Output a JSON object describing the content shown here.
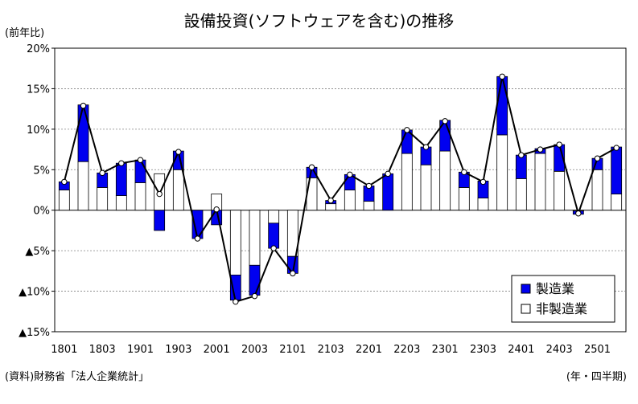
{
  "title": "設備投資(ソフトウェアを含む)の推移",
  "unit_label": "(前年比)",
  "source_label": "(資料)財務省「法人企業統計」",
  "period_label": "(年・四半期)",
  "colors": {
    "manufacturing": "#0000f0",
    "non_manufacturing": "#ffffff",
    "line": "#000000",
    "grid": "#808080"
  },
  "chart_data": {
    "type": "bar",
    "stacked": true,
    "ylim": [
      -15,
      20
    ],
    "y_ticks": [
      -15,
      -10,
      -5,
      0,
      5,
      10,
      15,
      20
    ],
    "y_tick_labels": [
      "▲15%",
      "▲10%",
      "▲5%",
      "0%",
      "5%",
      "10%",
      "15%",
      "20%"
    ],
    "x_tick_labels": [
      "1801",
      "1803",
      "1901",
      "1903",
      "2001",
      "2003",
      "2101",
      "2103",
      "2201",
      "2203",
      "2301",
      "2303",
      "2401",
      "2403",
      "2501"
    ],
    "categories": [
      "1801",
      "1802",
      "1803",
      "1804",
      "1901",
      "1902",
      "1903",
      "1904",
      "2001",
      "2002",
      "2003",
      "2004",
      "2101",
      "2102",
      "2103",
      "2104",
      "2201",
      "2202",
      "2203",
      "2204",
      "2301",
      "2302",
      "2303",
      "2304",
      "2401",
      "2402",
      "2403",
      "2404",
      "2501",
      "2502"
    ],
    "series": [
      {
        "name": "製造業",
        "values": [
          1.0,
          7.0,
          1.8,
          4.0,
          2.8,
          -2.5,
          2.3,
          -3.5,
          -1.8,
          -3.1,
          -3.7,
          -3.1,
          -2.1,
          1.3,
          0.4,
          1.9,
          1.9,
          4.5,
          2.9,
          2.2,
          3.8,
          1.9,
          2.1,
          7.2,
          2.9,
          0.6,
          3.3,
          -0.4,
          1.4,
          5.8
        ]
      },
      {
        "name": "非製造業",
        "values": [
          2.5,
          6.0,
          2.8,
          1.8,
          3.4,
          4.5,
          5.0,
          0.0,
          2.0,
          -8.0,
          -6.8,
          -1.6,
          -5.7,
          4.0,
          0.8,
          2.5,
          1.1,
          0.0,
          7.0,
          5.6,
          7.3,
          2.8,
          1.5,
          9.3,
          3.9,
          7.0,
          4.8,
          -0.1,
          5.0,
          2.0
        ]
      }
    ],
    "total_line": [
      3.5,
      12.9,
      4.6,
      5.8,
      6.2,
      2.0,
      7.2,
      -3.5,
      0.1,
      -11.3,
      -10.6,
      -4.7,
      -7.8,
      5.3,
      1.2,
      4.4,
      3.0,
      4.5,
      9.9,
      7.8,
      11.0,
      4.7,
      3.5,
      16.5,
      6.8,
      7.5,
      8.1,
      -0.4,
      6.4,
      7.7
    ],
    "legend_position": "bottom-right",
    "grid": "horizontal dotted"
  }
}
